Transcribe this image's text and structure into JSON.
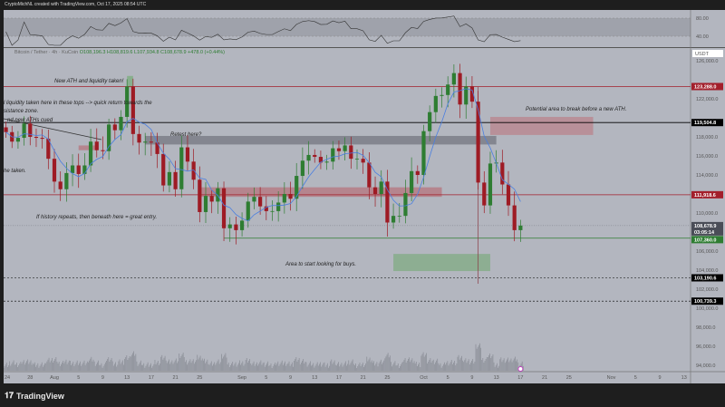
{
  "header": {
    "title": "CryptoMichNL created with TradingView.com, Oct 17, 2025 08:54 UTC",
    "symbol_line": "Bitcoin / Tether · 4h · KuCoin",
    "ohlc": {
      "open": "O108,196.3",
      "high": "H108,819.6",
      "low": "L107,934.8",
      "close": "C108,678.9",
      "change": "+478.0 (+0.44%)"
    },
    "currency": "USDT",
    "countdown": "03:05:14"
  },
  "footer": {
    "brand": "TradingView",
    "logo_icon": "tradingview-logo-icon"
  },
  "colors": {
    "background": "#b3b6bf",
    "up": "#2e7d32",
    "down": "#9e1b24",
    "ma": "#4a7fe0",
    "resistance": "#a31f2b",
    "support": "#2e7d32"
  },
  "chart_data": {
    "type": "candlestick",
    "symbol": "BTC/USDT",
    "timeframe": "4h",
    "x": [
      "Jul 24",
      "Jul 25",
      "Jul 26",
      "Jul 27",
      "Jul 28",
      "Jul 29",
      "Jul 30",
      "Jul 31",
      "Aug 1",
      "Aug 2",
      "Aug 3",
      "Aug 4",
      "Aug 5",
      "Aug 6",
      "Aug 7",
      "Aug 8",
      "Aug 9",
      "Aug 10",
      "Aug 11",
      "Aug 12",
      "Aug 13",
      "Aug 14",
      "Aug 15",
      "Aug 16",
      "Aug 17",
      "Aug 18",
      "Aug 19",
      "Aug 20",
      "Aug 21",
      "Aug 22",
      "Aug 23",
      "Aug 24",
      "Aug 25",
      "Aug 26",
      "Aug 27",
      "Aug 28",
      "Aug 29",
      "Aug 30",
      "Aug 31",
      "Sep 1",
      "Sep 2",
      "Sep 3",
      "Sep 4",
      "Sep 5",
      "Sep 6",
      "Sep 7",
      "Sep 8",
      "Sep 9",
      "Sep 10",
      "Sep 11",
      "Sep 12",
      "Sep 13",
      "Sep 14",
      "Sep 15",
      "Sep 16",
      "Sep 17",
      "Sep 18",
      "Sep 19",
      "Sep 20",
      "Sep 21",
      "Sep 22",
      "Sep 23",
      "Sep 24",
      "Sep 25",
      "Sep 26",
      "Sep 27",
      "Sep 28",
      "Sep 29",
      "Sep 30",
      "Oct 1",
      "Oct 2",
      "Oct 3",
      "Oct 4",
      "Oct 5",
      "Oct 6",
      "Oct 7",
      "Oct 8",
      "Oct 9",
      "Oct 10",
      "Oct 11",
      "Oct 12",
      "Oct 13",
      "Oct 14",
      "Oct 15",
      "Oct 16",
      "Oct 17"
    ],
    "close": [
      118500,
      117500,
      117900,
      119400,
      118000,
      117900,
      117800,
      115700,
      113300,
      112500,
      114200,
      115000,
      114100,
      115000,
      117500,
      116600,
      116500,
      119300,
      118700,
      120100,
      123300,
      118300,
      117400,
      117500,
      117400,
      116200,
      112900,
      114300,
      112500,
      116900,
      115400,
      113500,
      110100,
      111800,
      111200,
      112600,
      108400,
      108800,
      108200,
      109200,
      111200,
      111700,
      110700,
      110200,
      110200,
      111100,
      112000,
      111500,
      113900,
      115500,
      116100,
      115900,
      115300,
      115400,
      116800,
      116500,
      117100,
      115700,
      115700,
      115300,
      112700,
      112000,
      113300,
      109000,
      109700,
      109700,
      112100,
      114400,
      114000,
      118600,
      120600,
      122300,
      122400,
      123500,
      124700,
      121400,
      123300,
      121700,
      113200,
      110800,
      115200,
      115300,
      113000,
      110800,
      108200,
      108679
    ],
    "y_ticks": [
      126000,
      124000,
      122000,
      120000,
      118000,
      116000,
      114000,
      112000,
      110000,
      108000,
      106000,
      104000,
      102000,
      100000,
      98000,
      96000,
      94000
    ],
    "y_range": [
      93500,
      127000
    ],
    "x_tick_labels": [
      "24",
      "28",
      "Aug",
      "5",
      "9",
      "13",
      "17",
      "21",
      "25",
      "Sep",
      "5",
      "9",
      "13",
      "17",
      "21",
      "25",
      "Oct",
      "5",
      "9",
      "13",
      "17",
      "21",
      "25",
      "Nov",
      "5",
      "9",
      "13"
    ],
    "rsi_ticks": [
      "80.00",
      "40.00"
    ],
    "price_levels": [
      {
        "value": 123288.0,
        "label": "123,288.0",
        "color": "#a31f2b",
        "style": "solid"
      },
      {
        "value": 119504.8,
        "label": "119,504.8",
        "color": "#000000",
        "style": "solid"
      },
      {
        "value": 111918.6,
        "label": "111,918.6",
        "color": "#a31f2b",
        "style": "solid"
      },
      {
        "value": 108678.9,
        "label": "108,678.9",
        "color": "#4a4d57",
        "style": "dotted"
      },
      {
        "value": 107360.0,
        "label": "107,360.0",
        "color": "#2e7d32",
        "style": "solid"
      },
      {
        "value": 103190.6,
        "label": "103,190.6",
        "color": "#000000",
        "style": "dashed"
      },
      {
        "value": 100739.3,
        "label": "100,739.3",
        "color": "#000000",
        "style": "dashed"
      }
    ],
    "zones": [
      {
        "from": "Aug 13",
        "to": "Aug 14",
        "low": 123200,
        "high": 124400,
        "color": "#7fae82"
      },
      {
        "from": "Aug 5",
        "to": "Aug 8",
        "low": 116600,
        "high": 117100,
        "color": "#b57d85"
      },
      {
        "from": "Aug 16",
        "to": "Oct 13",
        "low": 117200,
        "high": 118100,
        "color": "#7b7e87"
      },
      {
        "from": "Aug 25",
        "to": "Oct 4",
        "low": 111700,
        "high": 112700,
        "color": "#b57d85"
      },
      {
        "from": "Oct 12",
        "to": "Oct 29",
        "low": 118200,
        "high": 120100,
        "color": "#b98a92"
      },
      {
        "from": "Sep 26",
        "to": "Oct 12",
        "low": 103900,
        "high": 105700,
        "color": "#86ad89"
      }
    ],
    "annotations": [
      "New ATH and liquidity taken!",
      "l liquidity taken here in these tops --> quick return towards the",
      "sistance zone.",
      "nd new ATHs cued",
      "he taken.",
      "Retest here?",
      "If history repeats, then beneath here = great entry.",
      "Area to start looking for buys.",
      "Potential area to break before a new ATH."
    ]
  }
}
